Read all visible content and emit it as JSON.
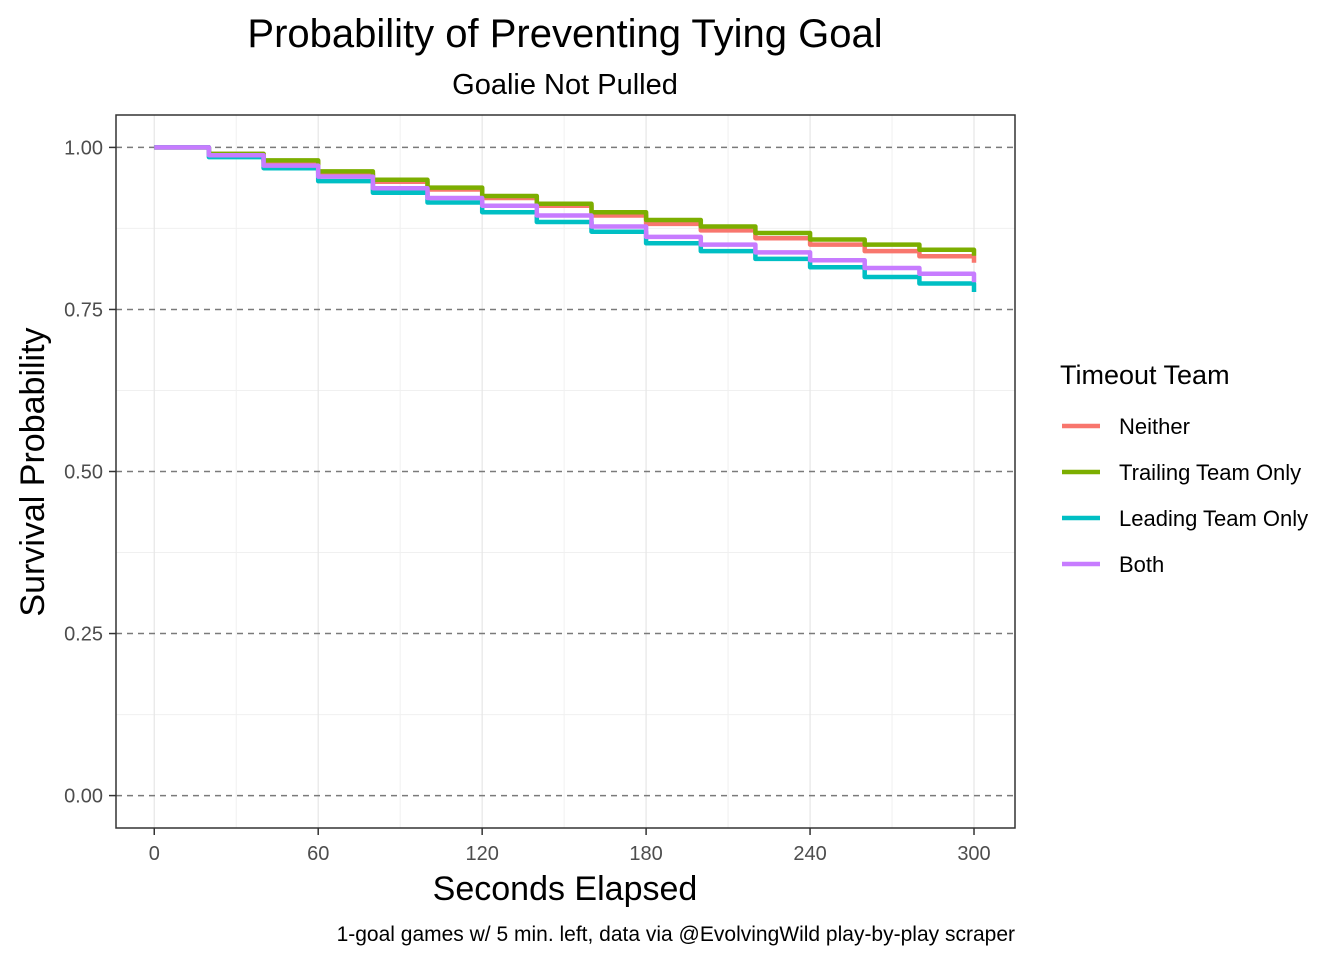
{
  "chart_data": {
    "type": "line",
    "title": "Probability of Preventing Tying Goal",
    "subtitle": "Goalie Not Pulled",
    "xlabel": "Seconds Elapsed",
    "ylabel": "Survival Probability",
    "caption": "1-goal games w/ 5 min. left, data via @EvolvingWild play-by-play scraper",
    "xlim": [
      -14,
      315
    ],
    "ylim": [
      -0.05,
      1.05
    ],
    "x_ticks": [
      0,
      60,
      120,
      180,
      240,
      300
    ],
    "x_tick_labels": [
      "0",
      "60",
      "120",
      "180",
      "240",
      "300"
    ],
    "y_ticks": [
      0,
      0.25,
      0.5,
      0.75,
      1.0
    ],
    "y_tick_labels": [
      "0.00",
      "0.25",
      "0.50",
      "0.75",
      "1.00"
    ],
    "y_reference_lines": [
      0,
      0.25,
      0.5,
      0.75,
      1.0
    ],
    "grid": true,
    "legend": {
      "title": "Timeout Team",
      "position": "right"
    },
    "series": [
      {
        "name": "Neither",
        "color": "#F8766D",
        "x": [
          0,
          20,
          40,
          60,
          80,
          100,
          120,
          140,
          160,
          180,
          200,
          220,
          240,
          260,
          280,
          300
        ],
        "y": [
          1.0,
          0.99,
          0.978,
          0.96,
          0.947,
          0.935,
          0.922,
          0.91,
          0.895,
          0.882,
          0.872,
          0.86,
          0.85,
          0.84,
          0.832,
          0.822
        ]
      },
      {
        "name": "Trailing Team Only",
        "color": "#7CAE00",
        "x": [
          0,
          20,
          40,
          60,
          80,
          100,
          120,
          140,
          160,
          180,
          200,
          220,
          240,
          260,
          280,
          300
        ],
        "y": [
          1.0,
          0.99,
          0.98,
          0.963,
          0.95,
          0.938,
          0.925,
          0.913,
          0.9,
          0.888,
          0.878,
          0.868,
          0.858,
          0.85,
          0.842,
          0.833
        ]
      },
      {
        "name": "Leading Team Only",
        "color": "#00BFC4",
        "x": [
          0,
          20,
          40,
          60,
          80,
          100,
          120,
          140,
          160,
          180,
          200,
          220,
          240,
          260,
          280,
          300
        ],
        "y": [
          1.0,
          0.985,
          0.968,
          0.948,
          0.93,
          0.915,
          0.9,
          0.885,
          0.87,
          0.852,
          0.84,
          0.828,
          0.815,
          0.8,
          0.79,
          0.777
        ]
      },
      {
        "name": "Both",
        "color": "#C77CFF",
        "x": [
          0,
          20,
          40,
          60,
          80,
          100,
          120,
          140,
          160,
          180,
          200,
          220,
          240,
          260,
          280,
          300
        ],
        "y": [
          1.0,
          0.988,
          0.972,
          0.955,
          0.937,
          0.922,
          0.91,
          0.895,
          0.878,
          0.862,
          0.85,
          0.838,
          0.826,
          0.814,
          0.805,
          0.792
        ]
      }
    ]
  }
}
